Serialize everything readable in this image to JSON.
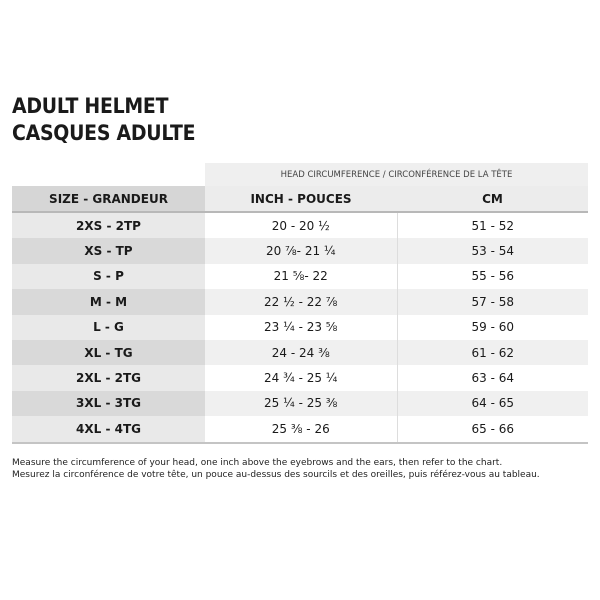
{
  "title": {
    "line1": "ADULT HELMET",
    "line2": "CASQUES ADULTE"
  },
  "table": {
    "group_header": "HEAD CIRCUMFERENCE / CIRCONFÉRENCE DE LA TÊTE",
    "headers": [
      "SIZE - GRANDEUR",
      "INCH - POUCES",
      "CM"
    ],
    "rows": [
      [
        "2XS - 2TP",
        "20 - 20 ½",
        "51 - 52"
      ],
      [
        "XS - TP",
        "20 ⅞- 21 ¼",
        "53 - 54"
      ],
      [
        "S - P",
        "21 ⅝- 22",
        "55 - 56"
      ],
      [
        "M - M",
        "22 ½ - 22 ⅞",
        "57 - 58"
      ],
      [
        "L - G",
        "23 ¼ - 23 ⅝",
        "59 - 60"
      ],
      [
        "XL - TG",
        "24 - 24 ⅜",
        "61 - 62"
      ],
      [
        "2XL - 2TG",
        "24 ¾ - 25 ¼",
        "63 - 64"
      ],
      [
        "3XL - 3TG",
        "25 ¼ - 25 ⅜",
        "64 - 65"
      ],
      [
        "4XL - 4TG",
        "25 ⅜ - 26",
        "65 - 66"
      ]
    ]
  },
  "notes": [
    "Measure the circumference of your head, one inch above the eyebrows and the ears, then refer to the chart.",
    "Mesurez la circonférence de votre tête, un pouce au-dessus des sourcils et des oreilles, puis référez-vous au tableau."
  ]
}
